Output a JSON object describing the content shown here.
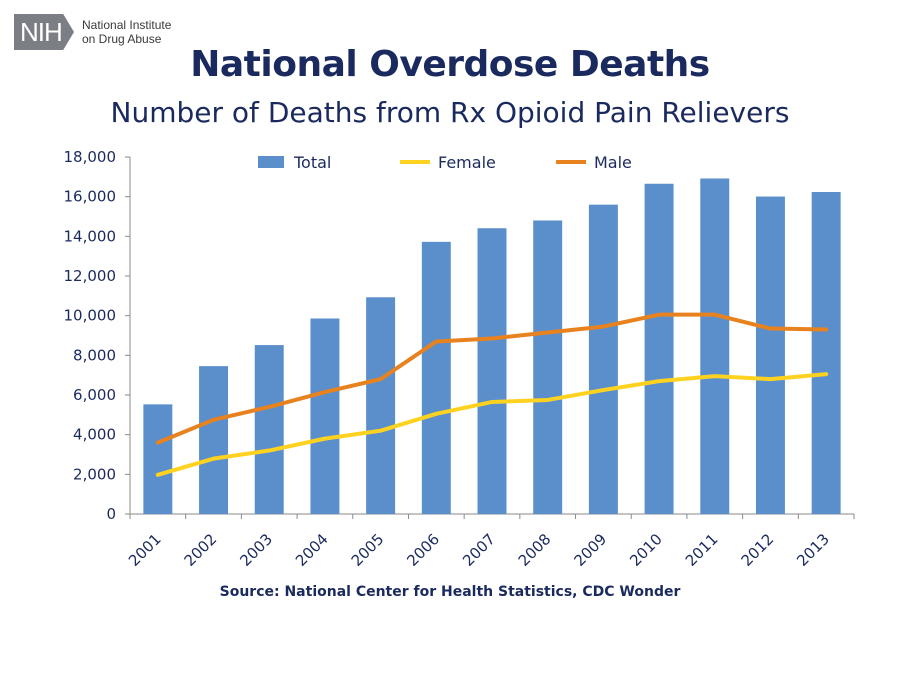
{
  "logo": {
    "badge": "NIH",
    "line1": "National Institute",
    "line2": "on Drug Abuse"
  },
  "title": "National Overdose Deaths",
  "subtitle": "Number of Deaths from Rx Opioid Pain Relievers",
  "source": "Source: National Center for Health Statistics, CDC Wonder",
  "chart_data": {
    "type": "bar",
    "title": "National Overdose Deaths",
    "subtitle": "Number of Deaths from Rx Opioid Pain Relievers",
    "xlabel": "",
    "ylabel": "",
    "ylim": [
      0,
      18000
    ],
    "yticks": [
      0,
      2000,
      4000,
      6000,
      8000,
      10000,
      12000,
      14000,
      16000,
      18000
    ],
    "ytick_labels": [
      "0",
      "2,000",
      "4,000",
      "6,000",
      "8,000",
      "10,000",
      "12,000",
      "14,000",
      "16,000",
      "18,000"
    ],
    "categories": [
      "2001",
      "2002",
      "2003",
      "2004",
      "2005",
      "2006",
      "2007",
      "2008",
      "2009",
      "2010",
      "2011",
      "2012",
      "2013"
    ],
    "legend_position": "top",
    "series": [
      {
        "name": "Total",
        "kind": "bar",
        "color": "#5b8fcc",
        "values": [
          5528,
          7456,
          8517,
          9857,
          10928,
          13723,
          14408,
          14800,
          15597,
          16651,
          16917,
          16007,
          16235
        ]
      },
      {
        "name": "Female",
        "kind": "line",
        "color": "#ffd21f",
        "values": [
          1975,
          2790,
          3200,
          3800,
          4200,
          5050,
          5650,
          5750,
          6250,
          6700,
          6950,
          6800,
          7050
        ]
      },
      {
        "name": "Male",
        "kind": "line",
        "color": "#e8821e",
        "values": [
          3600,
          4750,
          5400,
          6150,
          6800,
          8700,
          8850,
          9150,
          9450,
          10050,
          10050,
          9350,
          9300
        ]
      }
    ]
  }
}
